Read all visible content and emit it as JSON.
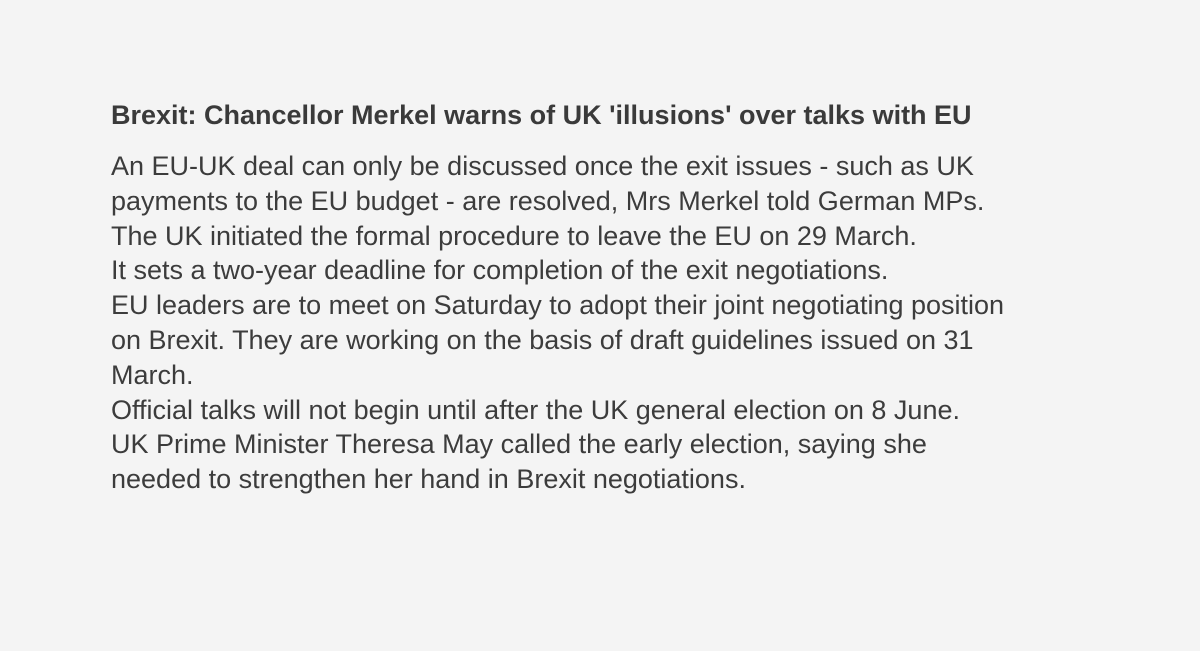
{
  "article": {
    "headline": "Brexit: Chancellor Merkel warns of UK 'illusions' over talks with EU",
    "lines": [
      "An EU-UK deal can only be discussed once the exit issues - such as UK",
      "payments to the EU budget - are resolved, Mrs Merkel told German MPs.",
      "The UK initiated the formal procedure to leave the EU on 29 March.",
      "It sets a two-year deadline for completion of the exit negotiations.",
      "EU leaders are to meet on Saturday to adopt their joint negotiating position",
      "on Brexit. They are working on the basis of draft guidelines issued on 31",
      "March.",
      "Official talks will not begin until after the UK general election on 8 June.",
      "UK Prime Minister Theresa May called the early election, saying she",
      "needed to strengthen her hand in Brexit negotiations."
    ]
  },
  "colors": {
    "background": "#f4f4f4",
    "text": "#3c3c3c"
  }
}
